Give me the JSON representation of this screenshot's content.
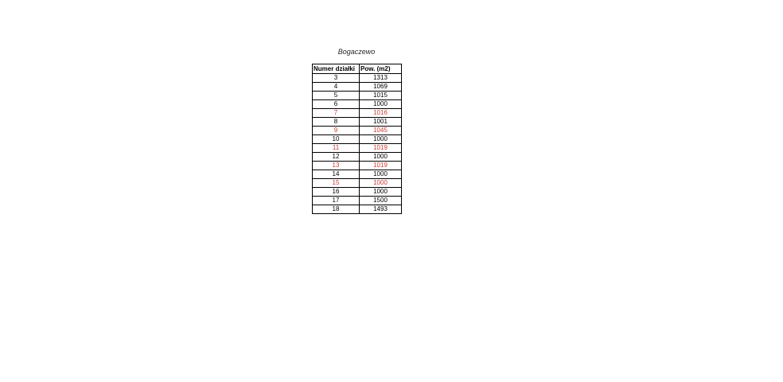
{
  "title": "Bogaczewo",
  "table": {
    "headers": [
      "Numer działki",
      "Pow. (m2)"
    ],
    "rows": [
      {
        "numer": "3",
        "pow": "1313",
        "red": false
      },
      {
        "numer": "4",
        "pow": "1069",
        "red": false
      },
      {
        "numer": "5",
        "pow": "1015",
        "red": false
      },
      {
        "numer": "6",
        "pow": "1000",
        "red": false
      },
      {
        "numer": "7",
        "pow": "1016",
        "red": true
      },
      {
        "numer": "8",
        "pow": "1001",
        "red": false
      },
      {
        "numer": "9",
        "pow": "1045",
        "red": true
      },
      {
        "numer": "10",
        "pow": "1000",
        "red": false
      },
      {
        "numer": "11",
        "pow": "1019",
        "red": true
      },
      {
        "numer": "12",
        "pow": "1000",
        "red": false
      },
      {
        "numer": "13",
        "pow": "1019",
        "red": true
      },
      {
        "numer": "14",
        "pow": "1000",
        "red": false
      },
      {
        "numer": "15",
        "pow": "1000",
        "red": true
      },
      {
        "numer": "16",
        "pow": "1000",
        "red": false
      },
      {
        "numer": "17",
        "pow": "1500",
        "red": false
      },
      {
        "numer": "18",
        "pow": "1493",
        "red": false
      }
    ]
  },
  "colors": {
    "text": "#000000",
    "red_text": "#cc3b33",
    "border": "#000000",
    "background": "#ffffff"
  }
}
